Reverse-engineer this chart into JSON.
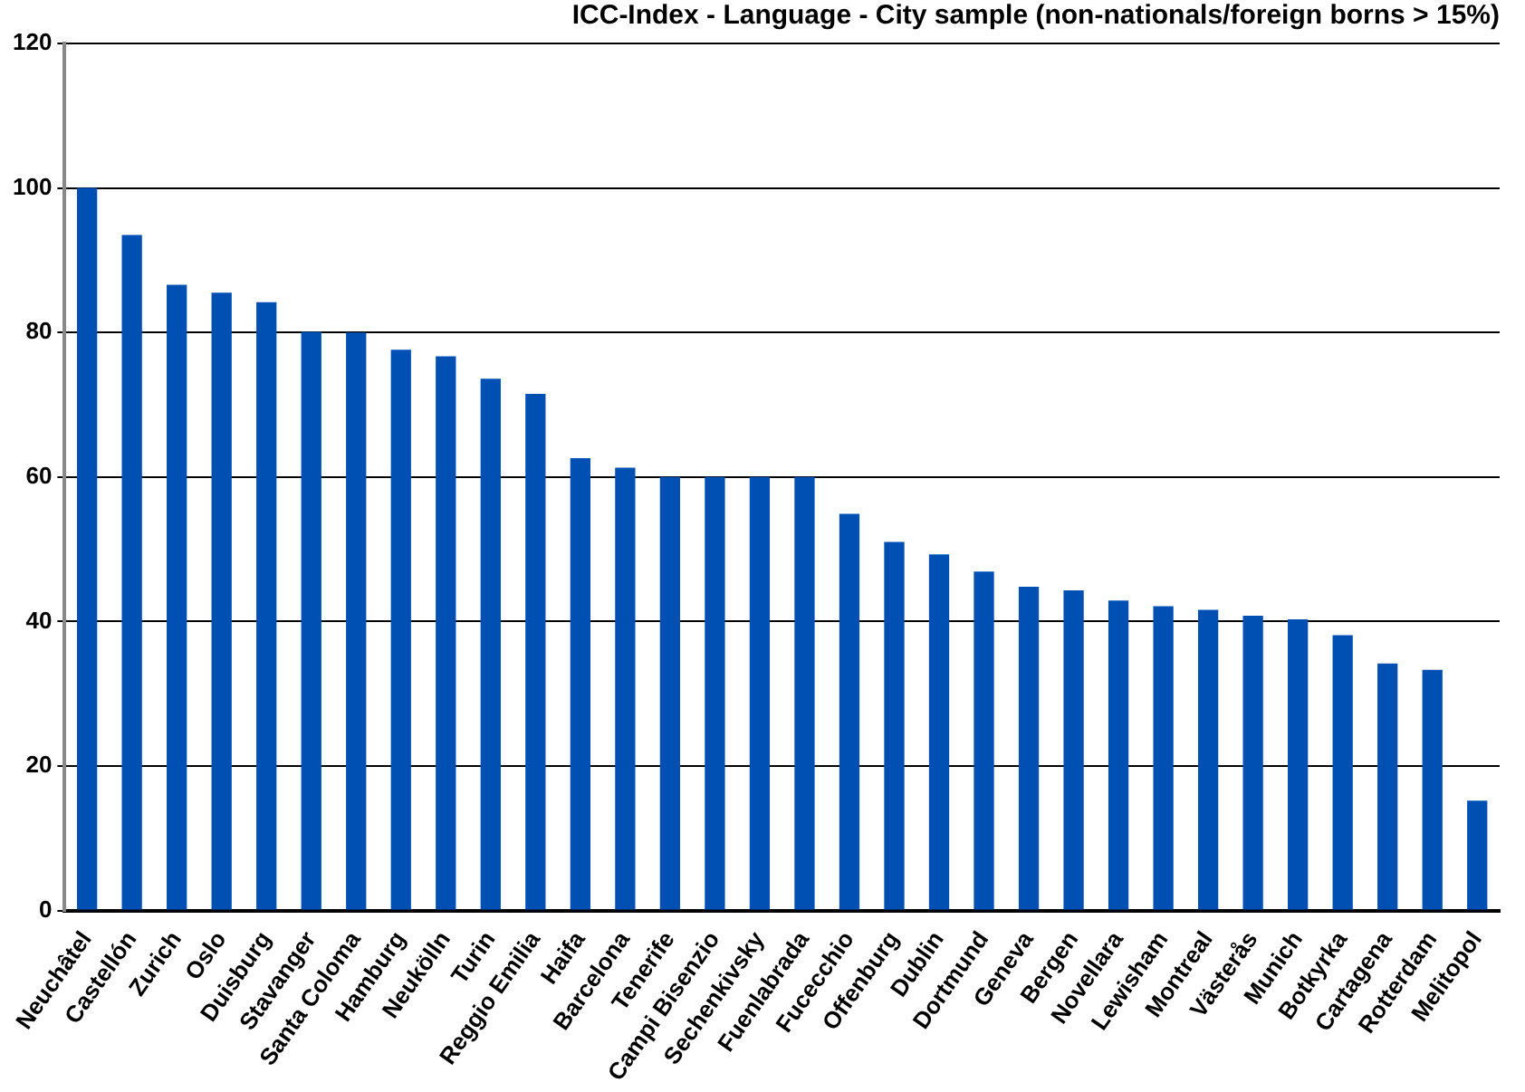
{
  "chart_data": {
    "type": "bar",
    "title": "ICC-Index - Language - City sample (non-nationals/foreign borns > 15%)",
    "categories": [
      "Neuchâtel",
      "Castellón",
      "Zurich",
      "Oslo",
      "Duisburg",
      "Stavanger",
      "Santa Coloma",
      "Hamburg",
      "Neukölln",
      "Turin",
      "Reggio Emilia",
      "Haifa",
      "Barcelona",
      "Tenerife",
      "Campi Bisenzio",
      "Sechenkivsky",
      "Fuenlabrada",
      "Fucecchio",
      "Offenburg",
      "Dublin",
      "Dortmund",
      "Geneva",
      "Bergen",
      "Novellara",
      "Lewisham",
      "Montreal",
      "Västerås",
      "Munich",
      "Botkyrka",
      "Cartagena",
      "Rotterdam",
      "Melitopol"
    ],
    "values": [
      100,
      93.5,
      86.6,
      85.5,
      84.2,
      80.1,
      80,
      77.6,
      76.7,
      73.6,
      71.5,
      62.6,
      61.3,
      60,
      60,
      60,
      60,
      54.9,
      51,
      49.3,
      46.9,
      44.8,
      44.3,
      42.9,
      42.1,
      41.6,
      40.8,
      40.3,
      38.1,
      34.2,
      33.3,
      15.2
    ],
    "color": "#0050b4",
    "ylim": [
      0,
      120
    ],
    "yticks": [
      0,
      20,
      40,
      60,
      80,
      100,
      120
    ],
    "grid": "y",
    "legend": false
  }
}
